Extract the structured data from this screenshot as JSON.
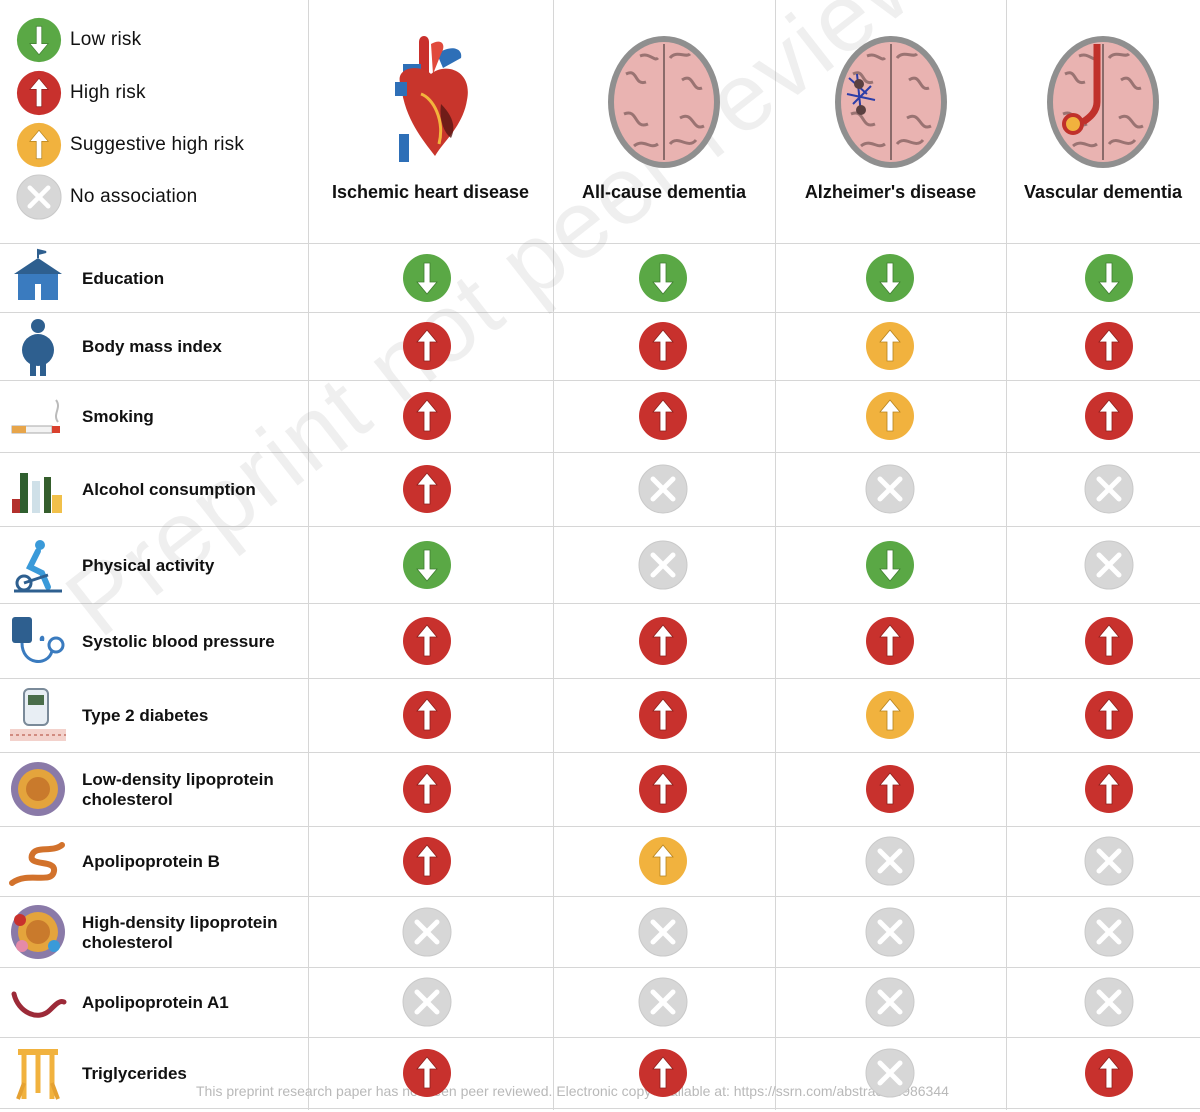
{
  "legend": [
    {
      "status": "low",
      "label": "Low risk"
    },
    {
      "status": "high",
      "label": "High risk"
    },
    {
      "status": "suggestive",
      "label": "Suggestive high risk"
    },
    {
      "status": "none",
      "label": "No association"
    }
  ],
  "status_colors": {
    "low": "#5aa845",
    "high": "#c8312d",
    "suggestive": "#f1b23e",
    "none": "#d7d7d7"
  },
  "diseases": [
    {
      "label": "Ischemic heart disease",
      "icon": "heart-icon"
    },
    {
      "label": "All-cause dementia",
      "icon": "brain-icon"
    },
    {
      "label": "Alzheimer's disease",
      "icon": "brain-plaques-icon"
    },
    {
      "label": "Vascular dementia",
      "icon": "brain-vessel-icon"
    }
  ],
  "factors": [
    {
      "label": "Education",
      "icon": "school-icon",
      "values": [
        "low",
        "low",
        "low",
        "low"
      ]
    },
    {
      "label": "Body mass index",
      "icon": "person-obese-icon",
      "values": [
        "high",
        "high",
        "suggestive",
        "high"
      ]
    },
    {
      "label": "Smoking",
      "icon": "cigarette-icon",
      "values": [
        "high",
        "high",
        "suggestive",
        "high"
      ]
    },
    {
      "label": "Alcohol consumption",
      "icon": "bottles-icon",
      "values": [
        "high",
        "none",
        "none",
        "none"
      ]
    },
    {
      "label": "Physical activity",
      "icon": "exercise-bike-icon",
      "values": [
        "low",
        "none",
        "low",
        "none"
      ]
    },
    {
      "label": "Systolic blood pressure",
      "icon": "blood-pressure-icon",
      "values": [
        "high",
        "high",
        "high",
        "high"
      ]
    },
    {
      "label": "Type 2 diabetes",
      "icon": "glucose-meter-icon",
      "values": [
        "high",
        "high",
        "suggestive",
        "high"
      ]
    },
    {
      "label": "Low-density lipoprotein\ncholesterol",
      "icon": "ldl-particle-icon",
      "values": [
        "high",
        "high",
        "high",
        "high"
      ]
    },
    {
      "label": "Apolipoprotein B",
      "icon": "protein-ribbon-icon",
      "values": [
        "high",
        "suggestive",
        "none",
        "none"
      ]
    },
    {
      "label": "High-density lipoprotein\ncholesterol",
      "icon": "hdl-particle-icon",
      "values": [
        "none",
        "none",
        "none",
        "none"
      ]
    },
    {
      "label": "Apolipoprotein A1",
      "icon": "protein-curve-icon",
      "values": [
        "none",
        "none",
        "none",
        "none"
      ]
    },
    {
      "label": "Triglycerides",
      "icon": "triglyceride-icon",
      "values": [
        "high",
        "high",
        "none",
        "high"
      ]
    }
  ],
  "watermark": "Preprint not peer reviewed",
  "footer": "This preprint research paper has not been peer reviewed. Electronic copy available at: https://ssrn.com/abstract=4986344"
}
